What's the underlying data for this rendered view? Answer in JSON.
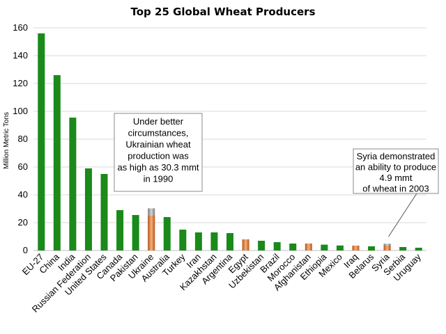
{
  "chart_data": {
    "type": "bar",
    "title": "Top 25 Global Wheat Producers",
    "ylabel": "Million Metric Tons",
    "xlabel": "",
    "ylim": [
      0,
      160
    ],
    "yticks": [
      0,
      20,
      40,
      60,
      80,
      100,
      120,
      140,
      160
    ],
    "grid": true,
    "categories": [
      "EU-27",
      "China",
      "India",
      "Russian Federation",
      "United States",
      "Canada",
      "Pakistan",
      "Ukraine",
      "Australia",
      "Turkey",
      "Iran",
      "Kazakhstan",
      "Argentina",
      "Egypt",
      "Uzbekistan",
      "Brazil",
      "Morocco",
      "Afghanistan",
      "Ethiopia",
      "Mexico",
      "Iraq",
      "Belarus",
      "Syria",
      "Serbia",
      "Uruguay"
    ],
    "values": [
      156,
      126,
      95.5,
      59,
      55,
      29,
      25.5,
      25,
      24,
      15,
      13,
      13,
      12.5,
      8,
      7,
      6,
      5,
      5,
      4.2,
      3.6,
      3.5,
      3,
      3.5,
      2.5,
      2
    ],
    "highlighted": [
      "Ukraine",
      "Egypt",
      "Afghanistan",
      "Iraq",
      "Syria"
    ],
    "historical_peaks": [
      {
        "category": "Ukraine",
        "value": 30.3
      },
      {
        "category": "Syria",
        "value": 4.9
      }
    ],
    "colors": {
      "default": "#1a8a1a",
      "highlight": "#e8823c",
      "highlight_dark": "#b8561a",
      "peak": "#a8a8a8"
    },
    "annotations": [
      {
        "category": "Ukraine",
        "lines": [
          "Under better",
          "circumstances,",
          "Ukrainian wheat",
          "production was",
          "as high as 30.3 mmt",
          "in 1990"
        ]
      },
      {
        "category": "Syria",
        "lines": [
          "Syria demonstrated",
          "an ability to produce",
          "4.9 mmt",
          "of wheat in 2003"
        ]
      }
    ]
  }
}
